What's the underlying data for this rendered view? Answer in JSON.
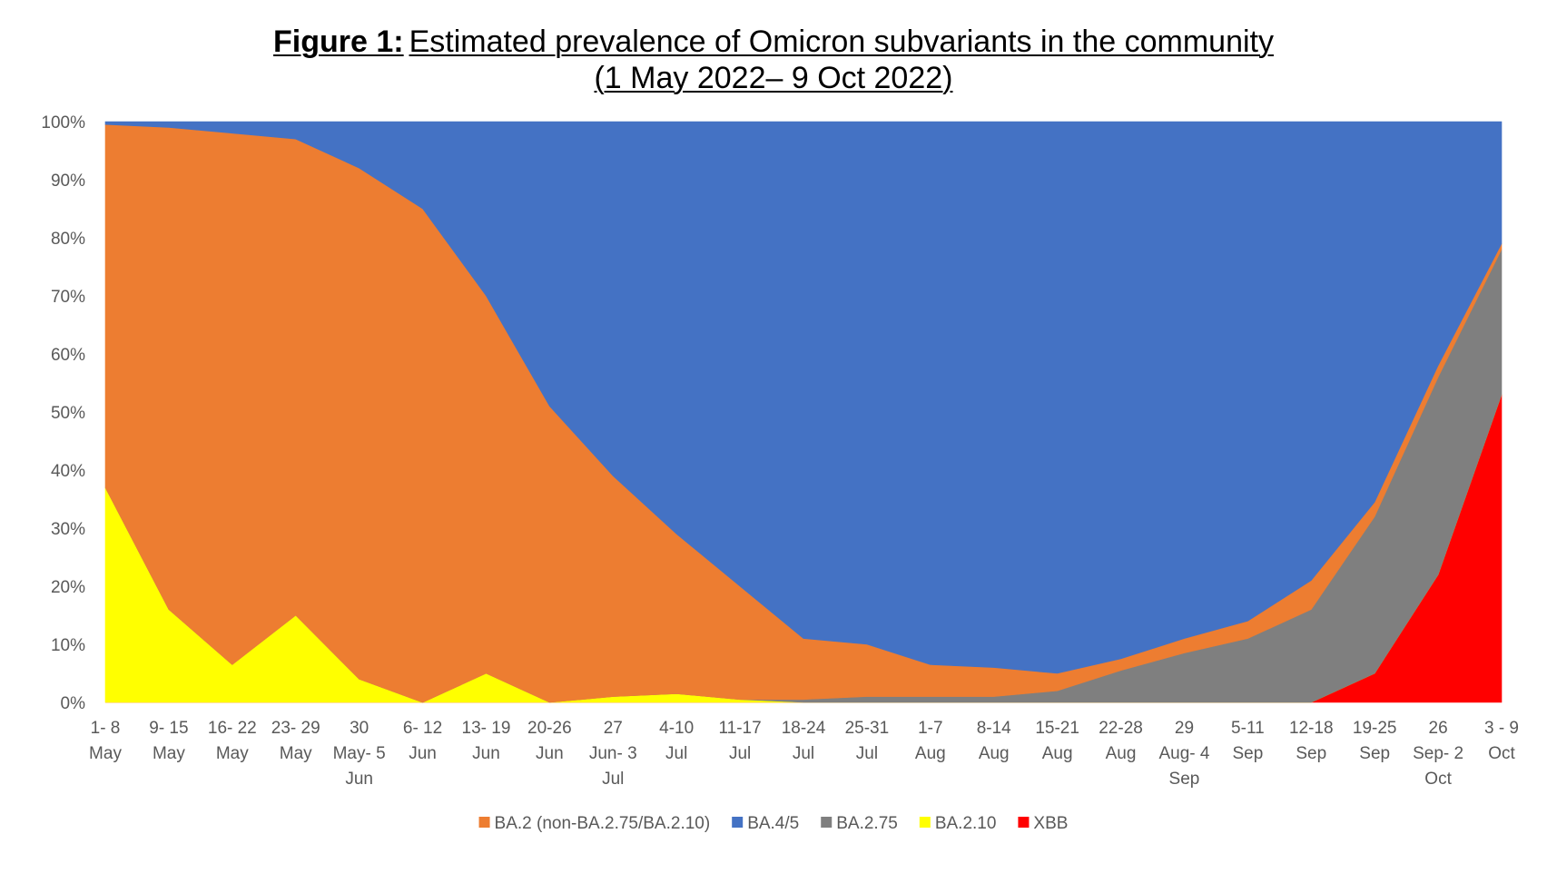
{
  "title": {
    "prefix": "Figure 1:",
    "main": "Estimated prevalence of Omicron subvariants in the community",
    "subtitle": "(1 May 2022– 9 Oct 2022)"
  },
  "chart_data": {
    "type": "area",
    "stacked": true,
    "title": "Figure 1: Estimated prevalence of Omicron subvariants in the community (1 May 2022– 9 Oct 2022)",
    "xlabel": "",
    "ylabel": "",
    "ylim": [
      0,
      100
    ],
    "y_ticks": [
      "0%",
      "10%",
      "20%",
      "30%",
      "40%",
      "50%",
      "60%",
      "70%",
      "80%",
      "90%",
      "100%"
    ],
    "grid": false,
    "legend_position": "bottom",
    "categories": [
      [
        "1- 8",
        "May"
      ],
      [
        "9- 15",
        "May"
      ],
      [
        "16- 22",
        "May"
      ],
      [
        "23- 29",
        "May"
      ],
      [
        "30",
        "May- 5",
        "Jun"
      ],
      [
        "6- 12",
        "Jun"
      ],
      [
        "13- 19",
        "Jun"
      ],
      [
        "20-26",
        "Jun"
      ],
      [
        "27",
        "Jun- 3",
        "Jul"
      ],
      [
        "4-10",
        "Jul"
      ],
      [
        "11-17",
        "Jul"
      ],
      [
        "18-24",
        "Jul"
      ],
      [
        "25-31",
        "Jul"
      ],
      [
        "1-7",
        "Aug"
      ],
      [
        "8-14",
        "Aug"
      ],
      [
        "15-21",
        "Aug"
      ],
      [
        "22-28",
        "Aug"
      ],
      [
        "29",
        "Aug- 4",
        "Sep"
      ],
      [
        "5-11",
        "Sep"
      ],
      [
        "12-18",
        "Sep"
      ],
      [
        "19-25",
        "Sep"
      ],
      [
        "26",
        "Sep- 2",
        "Oct"
      ],
      [
        "3 - 9",
        "Oct"
      ]
    ],
    "series": [
      {
        "name": "XBB",
        "color": "#ff0000",
        "values": [
          0,
          0,
          0,
          0,
          0,
          0,
          0,
          0,
          0,
          0,
          0,
          0,
          0,
          0,
          0,
          0,
          0,
          0,
          0,
          0,
          5,
          22,
          53
        ]
      },
      {
        "name": "BA.2.10",
        "color": "#ffff00",
        "values": [
          37,
          16,
          6.5,
          15,
          4,
          0,
          5,
          0,
          1,
          1.5,
          0.5,
          0,
          0,
          0,
          0,
          0,
          0,
          0,
          0,
          0,
          0,
          0,
          0
        ]
      },
      {
        "name": "BA.2.75",
        "color": "#7f7f7f",
        "values": [
          0,
          0,
          0,
          0,
          0,
          0,
          0,
          0,
          0,
          0,
          0,
          0.5,
          1,
          1,
          1,
          2,
          5.5,
          8.5,
          11,
          16,
          27,
          34,
          25
        ]
      },
      {
        "name": "BA.2 (non-BA.2.75/BA.2.10)",
        "color": "#ed7d31",
        "values": [
          62.5,
          83,
          91.5,
          82,
          88,
          85,
          65,
          51,
          38,
          27.5,
          19.5,
          10.5,
          9,
          5.5,
          5,
          3,
          2,
          2.5,
          3,
          5,
          2.5,
          2,
          1
        ]
      },
      {
        "name": "BA.4/5",
        "color": "#4472c4",
        "values": [
          0.5,
          1,
          2,
          3,
          8,
          15,
          30,
          49,
          61,
          71,
          80,
          89,
          90,
          93.5,
          94,
          95,
          92.5,
          89,
          86,
          79,
          65.5,
          42,
          21
        ]
      }
    ],
    "legend": [
      {
        "name": "BA.2 (non-BA.2.75/BA.2.10)",
        "color": "#ed7d31"
      },
      {
        "name": "BA.4/5",
        "color": "#4472c4"
      },
      {
        "name": "BA.2.75",
        "color": "#7f7f7f"
      },
      {
        "name": "BA.2.10",
        "color": "#ffff00"
      },
      {
        "name": "XBB",
        "color": "#ff0000"
      }
    ]
  }
}
